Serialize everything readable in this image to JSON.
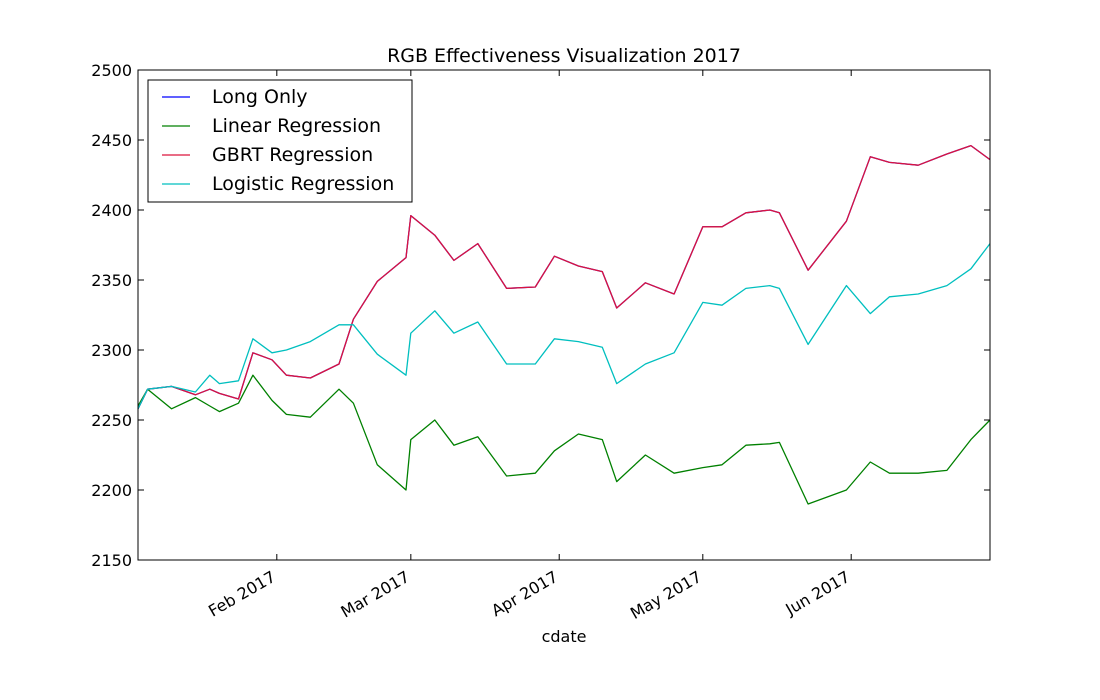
{
  "chart_data": {
    "type": "line",
    "title": "RGB Effectiveness Visualization 2017",
    "xlabel": "cdate",
    "ylabel": "",
    "ylim": [
      2150,
      2500
    ],
    "xlim": [
      "2017-01-03",
      "2017-06-30"
    ],
    "yticks": [
      2150,
      2200,
      2250,
      2300,
      2350,
      2400,
      2450,
      2500
    ],
    "xticks": [
      {
        "date": "2017-02-01",
        "label": "Feb 2017"
      },
      {
        "date": "2017-03-01",
        "label": "Mar 2017"
      },
      {
        "date": "2017-04-01",
        "label": "Apr 2017"
      },
      {
        "date": "2017-05-01",
        "label": "May 2017"
      },
      {
        "date": "2017-06-01",
        "label": "Jun 2017"
      }
    ],
    "grid": false,
    "legend_position": "top-left",
    "series": [
      {
        "name": "Long Only",
        "color": "#0000ff",
        "x": [
          "2017-01-03",
          "2017-01-05",
          "2017-01-10",
          "2017-01-15",
          "2017-01-18",
          "2017-01-20",
          "2017-01-24",
          "2017-01-27",
          "2017-01-31",
          "2017-02-03",
          "2017-02-08",
          "2017-02-14",
          "2017-02-17",
          "2017-02-22",
          "2017-02-28",
          "2017-03-01",
          "2017-03-06",
          "2017-03-10",
          "2017-03-15",
          "2017-03-21",
          "2017-03-27",
          "2017-03-31",
          "2017-04-05",
          "2017-04-10",
          "2017-04-13",
          "2017-04-19",
          "2017-04-25",
          "2017-05-01",
          "2017-05-05",
          "2017-05-10",
          "2017-05-15",
          "2017-05-17",
          "2017-05-23",
          "2017-05-31",
          "2017-06-05",
          "2017-06-09",
          "2017-06-15",
          "2017-06-21",
          "2017-06-26",
          "2017-06-30"
        ],
        "values": [
          2258,
          2272,
          2274,
          2268,
          2272,
          2269,
          2265,
          2298,
          2293,
          2282,
          2280,
          2290,
          2322,
          2349,
          2366,
          2396,
          2382,
          2364,
          2376,
          2344,
          2345,
          2367,
          2360,
          2356,
          2330,
          2348,
          2340,
          2388,
          2388,
          2398,
          2400,
          2398,
          2357,
          2392,
          2438,
          2434,
          2432,
          2440,
          2446,
          2436
        ]
      },
      {
        "name": "Linear Regression",
        "color": "#008000",
        "x": [
          "2017-01-03",
          "2017-01-05",
          "2017-01-10",
          "2017-01-15",
          "2017-01-18",
          "2017-01-20",
          "2017-01-24",
          "2017-01-27",
          "2017-01-31",
          "2017-02-03",
          "2017-02-08",
          "2017-02-14",
          "2017-02-17",
          "2017-02-22",
          "2017-02-28",
          "2017-03-01",
          "2017-03-06",
          "2017-03-10",
          "2017-03-15",
          "2017-03-21",
          "2017-03-27",
          "2017-03-31",
          "2017-04-05",
          "2017-04-10",
          "2017-04-13",
          "2017-04-19",
          "2017-04-25",
          "2017-05-01",
          "2017-05-05",
          "2017-05-10",
          "2017-05-15",
          "2017-05-17",
          "2017-05-23",
          "2017-05-31",
          "2017-06-05",
          "2017-06-09",
          "2017-06-15",
          "2017-06-21",
          "2017-06-26",
          "2017-06-30"
        ],
        "values": [
          2260,
          2272,
          2258,
          2266,
          2260,
          2256,
          2262,
          2282,
          2264,
          2254,
          2252,
          2272,
          2262,
          2218,
          2200,
          2236,
          2250,
          2232,
          2238,
          2210,
          2212,
          2228,
          2240,
          2236,
          2206,
          2225,
          2212,
          2216,
          2218,
          2232,
          2233,
          2234,
          2190,
          2200,
          2220,
          2212,
          2212,
          2214,
          2236,
          2250
        ]
      },
      {
        "name": "GBRT Regression",
        "color": "#dc143c",
        "x": [
          "2017-01-03",
          "2017-01-05",
          "2017-01-10",
          "2017-01-15",
          "2017-01-18",
          "2017-01-20",
          "2017-01-24",
          "2017-01-27",
          "2017-01-31",
          "2017-02-03",
          "2017-02-08",
          "2017-02-14",
          "2017-02-17",
          "2017-02-22",
          "2017-02-28",
          "2017-03-01",
          "2017-03-06",
          "2017-03-10",
          "2017-03-15",
          "2017-03-21",
          "2017-03-27",
          "2017-03-31",
          "2017-04-05",
          "2017-04-10",
          "2017-04-13",
          "2017-04-19",
          "2017-04-25",
          "2017-05-01",
          "2017-05-05",
          "2017-05-10",
          "2017-05-15",
          "2017-05-17",
          "2017-05-23",
          "2017-05-31",
          "2017-06-05",
          "2017-06-09",
          "2017-06-15",
          "2017-06-21",
          "2017-06-26",
          "2017-06-30"
        ],
        "values": [
          2258,
          2272,
          2274,
          2268,
          2272,
          2269,
          2265,
          2298,
          2293,
          2282,
          2280,
          2290,
          2322,
          2349,
          2366,
          2396,
          2382,
          2364,
          2376,
          2344,
          2345,
          2367,
          2360,
          2356,
          2330,
          2348,
          2340,
          2388,
          2388,
          2398,
          2400,
          2398,
          2357,
          2392,
          2438,
          2434,
          2432,
          2440,
          2446,
          2436
        ]
      },
      {
        "name": "Logistic Regression",
        "color": "#00bfbf",
        "x": [
          "2017-01-03",
          "2017-01-05",
          "2017-01-10",
          "2017-01-15",
          "2017-01-18",
          "2017-01-20",
          "2017-01-24",
          "2017-01-27",
          "2017-01-31",
          "2017-02-03",
          "2017-02-08",
          "2017-02-14",
          "2017-02-17",
          "2017-02-22",
          "2017-02-28",
          "2017-03-01",
          "2017-03-06",
          "2017-03-10",
          "2017-03-15",
          "2017-03-21",
          "2017-03-27",
          "2017-03-31",
          "2017-04-05",
          "2017-04-10",
          "2017-04-13",
          "2017-04-19",
          "2017-04-25",
          "2017-05-01",
          "2017-05-05",
          "2017-05-10",
          "2017-05-15",
          "2017-05-17",
          "2017-05-23",
          "2017-05-31",
          "2017-06-05",
          "2017-06-09",
          "2017-06-15",
          "2017-06-21",
          "2017-06-26",
          "2017-06-30"
        ],
        "values": [
          2258,
          2272,
          2274,
          2270,
          2282,
          2276,
          2278,
          2308,
          2298,
          2300,
          2306,
          2318,
          2318,
          2297,
          2282,
          2312,
          2328,
          2312,
          2320,
          2290,
          2290,
          2308,
          2306,
          2302,
          2276,
          2290,
          2298,
          2334,
          2332,
          2344,
          2346,
          2344,
          2304,
          2346,
          2326,
          2338,
          2340,
          2346,
          2358,
          2376
        ]
      }
    ]
  }
}
